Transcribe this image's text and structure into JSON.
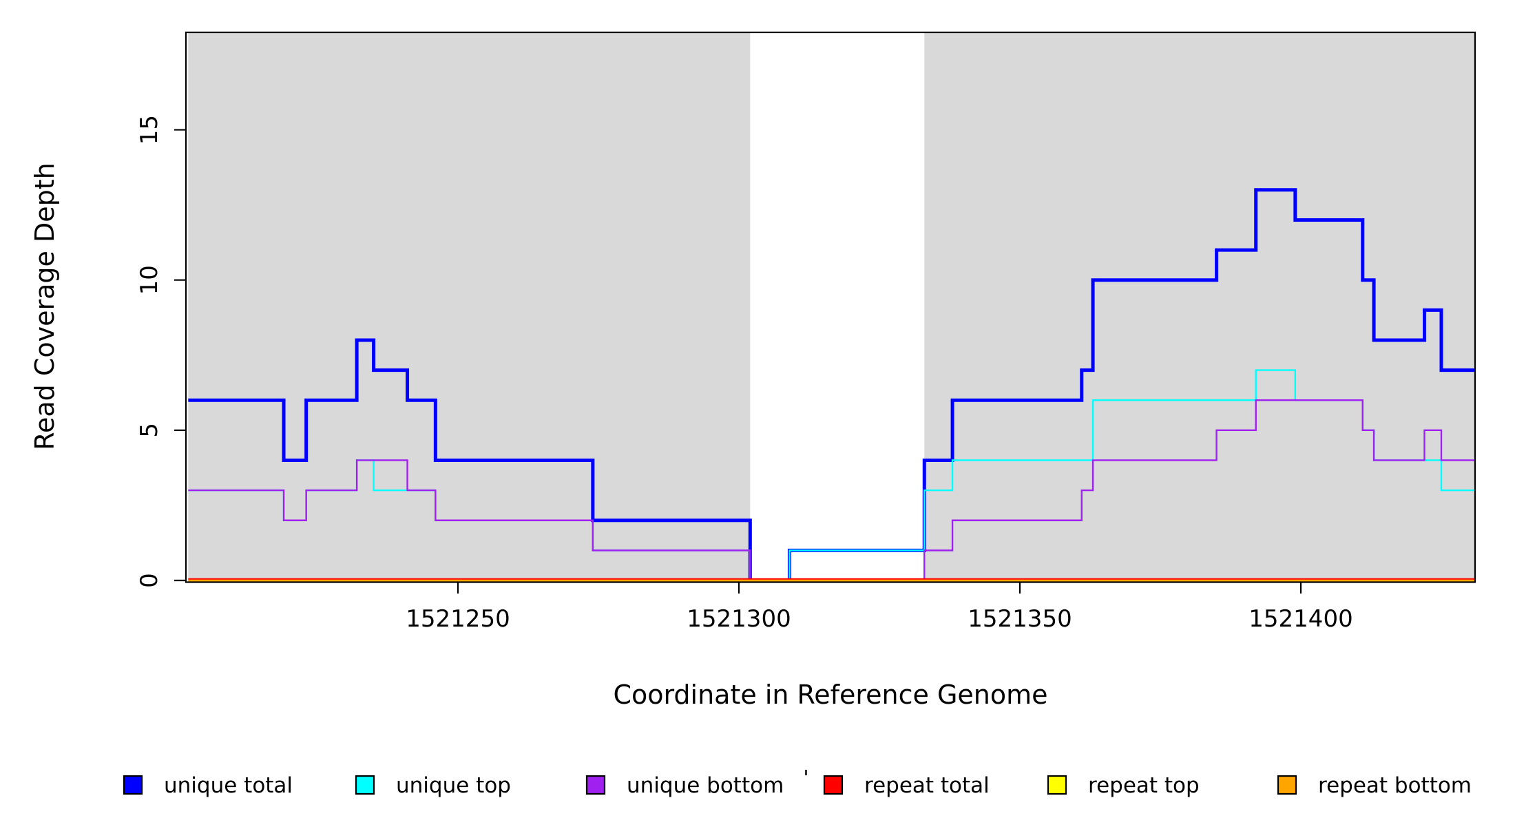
{
  "figure": {
    "background_color": "#ffffff",
    "unique_region_color": "#d9d9d9",
    "repeat_region_color": "#ffffff",
    "axis_color": "#000000"
  },
  "axes": {
    "xlabel": "Coordinate in Reference Genome",
    "ylabel": "Read Coverage Depth",
    "x_tick_labels": [
      "1521250",
      "1521300",
      "1521350",
      "1521400"
    ],
    "x_tick_values": [
      1521250,
      1521300,
      1521350,
      1521400
    ],
    "y_tick_labels": [
      "0",
      "5",
      "10",
      "15"
    ],
    "y_tick_values": [
      0,
      5,
      10,
      15
    ],
    "x_range": [
      1521202,
      1521432
    ],
    "y_range": [
      0,
      18.2
    ]
  },
  "chart_data": {
    "type": "line",
    "subtype": "step-coverage",
    "title": "",
    "xlabel": "Coordinate in Reference Genome",
    "ylabel": "Read Coverage Depth",
    "xlim": [
      1521202,
      1521432
    ],
    "ylim": [
      0,
      18.2
    ],
    "grid": false,
    "legend_position": "bottom",
    "x_end": 1521432,
    "shaded_unique_regions": [
      [
        1521202,
        1521302
      ],
      [
        1521333,
        1521432
      ]
    ],
    "white_repeat_region": [
      1521302,
      1521333
    ],
    "series": [
      {
        "name": "unique total",
        "color": "#0000ff",
        "line_width": 5,
        "steps": [
          [
            1521202,
            6
          ],
          [
            1521219,
            4
          ],
          [
            1521223,
            6
          ],
          [
            1521232,
            8
          ],
          [
            1521235,
            7
          ],
          [
            1521241,
            6
          ],
          [
            1521246,
            4
          ],
          [
            1521274,
            2
          ],
          [
            1521302,
            0
          ],
          [
            1521309,
            1
          ],
          [
            1521333,
            4
          ],
          [
            1521338,
            6
          ],
          [
            1521361,
            7
          ],
          [
            1521363,
            10
          ],
          [
            1521385,
            11
          ],
          [
            1521392,
            13
          ],
          [
            1521399,
            12
          ],
          [
            1521411,
            10
          ],
          [
            1521413,
            8
          ],
          [
            1521422,
            9
          ],
          [
            1521425,
            7
          ]
        ]
      },
      {
        "name": "unique top",
        "color": "#00ffff",
        "line_width": 2.4,
        "steps": [
          [
            1521202,
            3
          ],
          [
            1521219,
            2
          ],
          [
            1521223,
            3
          ],
          [
            1521232,
            4
          ],
          [
            1521235,
            3
          ],
          [
            1521246,
            2
          ],
          [
            1521274,
            1
          ],
          [
            1521302,
            0
          ],
          [
            1521309,
            1
          ],
          [
            1521333,
            3
          ],
          [
            1521338,
            4
          ],
          [
            1521363,
            6
          ],
          [
            1521392,
            7
          ],
          [
            1521399,
            6
          ],
          [
            1521411,
            5
          ],
          [
            1521413,
            4
          ],
          [
            1521425,
            3
          ]
        ]
      },
      {
        "name": "unique bottom",
        "color": "#a020f0",
        "line_width": 2.4,
        "steps": [
          [
            1521202,
            3
          ],
          [
            1521219,
            2
          ],
          [
            1521223,
            3
          ],
          [
            1521232,
            4
          ],
          [
            1521241,
            3
          ],
          [
            1521246,
            2
          ],
          [
            1521274,
            1
          ],
          [
            1521302,
            0
          ],
          [
            1521333,
            1
          ],
          [
            1521338,
            2
          ],
          [
            1521361,
            3
          ],
          [
            1521363,
            4
          ],
          [
            1521385,
            5
          ],
          [
            1521392,
            6
          ],
          [
            1521411,
            5
          ],
          [
            1521413,
            4
          ],
          [
            1521422,
            5
          ],
          [
            1521425,
            4
          ]
        ]
      },
      {
        "name": "repeat total",
        "color": "#ff0000",
        "line_width": 2.4,
        "steps": [
          [
            1521202,
            0
          ]
        ]
      },
      {
        "name": "repeat top",
        "color": "#ffff00",
        "line_width": 2.2,
        "steps": [
          [
            1521202,
            0
          ]
        ]
      },
      {
        "name": "repeat bottom",
        "color": "#ffa500",
        "line_width": 4.2,
        "steps": [
          [
            1521202,
            0
          ]
        ]
      }
    ]
  },
  "legend": {
    "items": [
      {
        "label": "unique total",
        "color": "#0000ff"
      },
      {
        "label": "unique top",
        "color": "#00ffff"
      },
      {
        "label": "unique bottom",
        "color": "#a020f0"
      },
      {
        "label": "repeat total",
        "color": "#ff0000"
      },
      {
        "label": "repeat top",
        "color": "#ffff00"
      },
      {
        "label": "repeat bottom",
        "color": "#ffa500"
      }
    ],
    "marker_style": "filled-square-black-border"
  }
}
